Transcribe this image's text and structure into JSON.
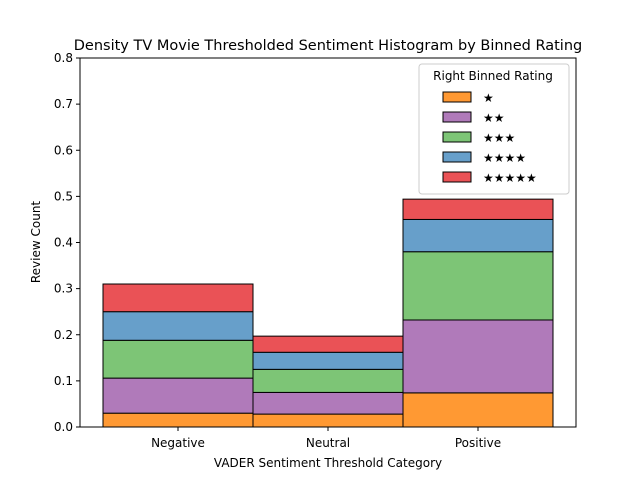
{
  "chart_data": {
    "type": "bar",
    "stacked": true,
    "title": "Density TV Movie Thresholded Sentiment Histogram by Binned Rating",
    "xlabel": "VADER Sentiment Threshold Category",
    "ylabel": "Review Count",
    "ylim": [
      0,
      0.8
    ],
    "yticks": [
      "0.0",
      "0.1",
      "0.2",
      "0.3",
      "0.4",
      "0.5",
      "0.6",
      "0.7",
      "0.8"
    ],
    "categories": [
      "Negative",
      "Neutral",
      "Positive"
    ],
    "grid": false,
    "legend": {
      "title": "Right Binned Rating",
      "placement": "top-right"
    },
    "series": [
      {
        "name": "★",
        "color": "#ff9933",
        "values": [
          0.03,
          0.028,
          0.074
        ]
      },
      {
        "name": "★★",
        "color": "#b07aba",
        "values": [
          0.076,
          0.047,
          0.158
        ]
      },
      {
        "name": "★★★",
        "color": "#7dc576",
        "values": [
          0.082,
          0.05,
          0.148
        ]
      },
      {
        "name": "★★★★",
        "color": "#679fca",
        "values": [
          0.062,
          0.037,
          0.07
        ]
      },
      {
        "name": "★★★★★",
        "color": "#ea5256",
        "values": [
          0.06,
          0.035,
          0.044
        ]
      }
    ]
  }
}
